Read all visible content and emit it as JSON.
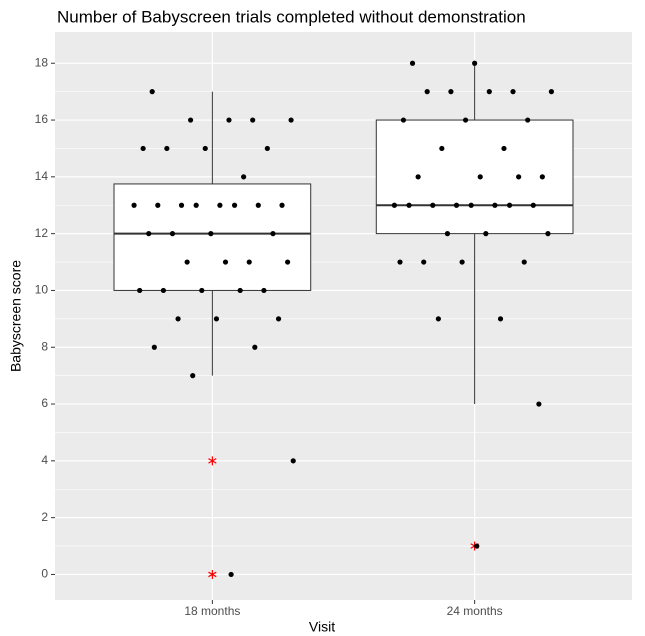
{
  "chart_data": {
    "type": "box",
    "title": "Number of Babyscreen trials completed without demonstration",
    "x_label": "Visit",
    "y_label": "Babyscreen score",
    "categories": [
      "18 months",
      "24 months"
    ],
    "boxes": [
      {
        "whisker_low": 7,
        "q1": 10,
        "median": 12,
        "q3": 13.75,
        "whisker_high": 17
      },
      {
        "whisker_low": 6,
        "q1": 12,
        "median": 13,
        "q3": 16,
        "whisker_high": 18
      }
    ],
    "outliers": [
      [
        4,
        0
      ],
      [
        1
      ]
    ],
    "points": [
      [
        17,
        16,
        16,
        16,
        16,
        15,
        15,
        15,
        15,
        14,
        13,
        13,
        13,
        13,
        13,
        13,
        13,
        13,
        12,
        12,
        12,
        12,
        11,
        11,
        11,
        11,
        10,
        10,
        10,
        10,
        10,
        9,
        9,
        9,
        8,
        8,
        7,
        4,
        0
      ],
      [
        18,
        18,
        17,
        17,
        17,
        17,
        17,
        16,
        16,
        16,
        15,
        15,
        14,
        14,
        14,
        14,
        13,
        13,
        13,
        13,
        13,
        13,
        13,
        13,
        12,
        12,
        12,
        11,
        11,
        11,
        11,
        9,
        9,
        6,
        1
      ]
    ],
    "point_color": "#000000",
    "outlier_color": "#ff0000",
    "box_fill": "#ffffff",
    "panel_color": "#ebebeb",
    "ylim": [
      -0.9,
      19.1
    ],
    "yticks": [
      0,
      2,
      4,
      6,
      8,
      10,
      12,
      14,
      16,
      18
    ],
    "grid": true
  }
}
